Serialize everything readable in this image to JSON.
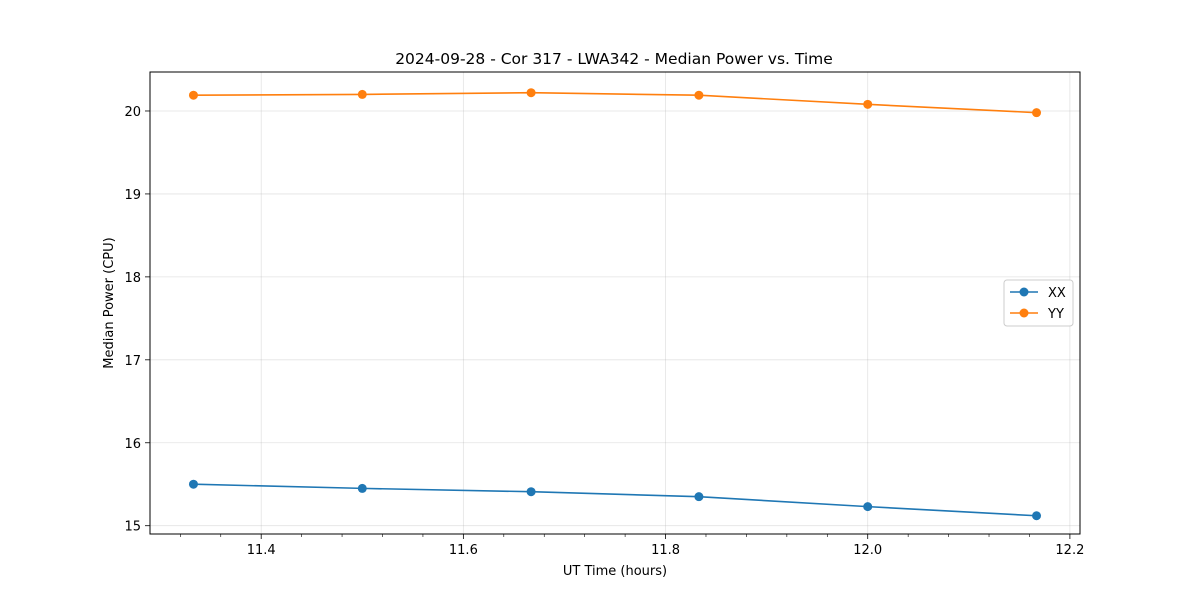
{
  "chart_data": {
    "type": "line",
    "title": "2024-09-28 - Cor 317 - LWA342 - Median Power vs. Time",
    "xlabel": "UT Time (hours)",
    "ylabel": "Median Power (CPU)",
    "xlim": [
      11.29,
      12.21
    ],
    "ylim": [
      14.9,
      20.47
    ],
    "xticks": [
      11.4,
      11.6,
      11.8,
      12.0,
      12.2
    ],
    "xtick_labels": [
      "11.4",
      "11.6",
      "11.8",
      "12.0",
      "12.2"
    ],
    "yticks": [
      15,
      16,
      17,
      18,
      19,
      20
    ],
    "ytick_labels": [
      "15",
      "16",
      "17",
      "18",
      "19",
      "20"
    ],
    "grid": true,
    "legend_position": "center-right",
    "x": [
      11.333,
      11.5,
      11.667,
      11.833,
      12.0,
      12.167
    ],
    "series": [
      {
        "name": "XX",
        "color": "#1f77b4",
        "values": [
          15.5,
          15.45,
          15.41,
          15.35,
          15.23,
          15.12
        ]
      },
      {
        "name": "YY",
        "color": "#ff7f0e",
        "values": [
          20.19,
          20.2,
          20.22,
          20.19,
          20.08,
          19.98
        ]
      }
    ]
  }
}
